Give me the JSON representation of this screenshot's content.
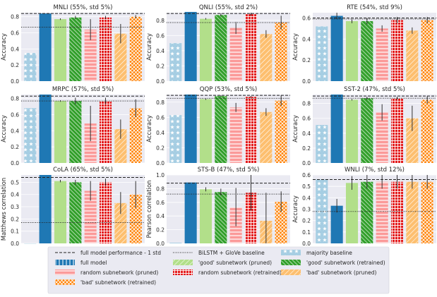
{
  "colors": {
    "axes_bg": "#eaeaf2",
    "grid": "#ffffff",
    "majority": "#a6cee3",
    "full": "#1f78b4",
    "good": "#b2df8a",
    "good_re": "#33a02c",
    "random": "#fb9a99",
    "random_re": "#e31a1c",
    "bad": "#fdbf6f",
    "bad_re": "#ff7f00"
  },
  "legend": {
    "entries": [
      {
        "key": "full_line",
        "label": "full model performance - 1 std"
      },
      {
        "key": "bilstm_line",
        "label": "BiLSTM + GloVe baseline"
      },
      {
        "key": "majority",
        "label": "majority baseline"
      },
      {
        "key": "full",
        "label": "full model"
      },
      {
        "key": "good",
        "label": "'good' subnetwork (pruned)"
      },
      {
        "key": "good_re",
        "label": "'good' subnetwork (retrained)"
      },
      {
        "key": "random",
        "label": "random subnetwork (pruned)"
      },
      {
        "key": "random_re",
        "label": "random subnetwork (retrained)"
      },
      {
        "key": "bad",
        "label": "'bad' subnetwork (pruned)"
      },
      {
        "key": "bad_re",
        "label": "'bad' subnetwork (retrained)"
      }
    ]
  },
  "chart_data": [
    {
      "type": "bar",
      "title": "MNLI (55%, std 5%)",
      "ylabel": "Accuracy",
      "ylim": [
        0,
        0.85
      ],
      "yticks": [
        0.0,
        0.2,
        0.4,
        0.6,
        0.8
      ],
      "values": [
        0.35,
        0.84,
        0.77,
        0.79,
        0.64,
        0.79,
        0.59,
        0.8
      ],
      "errors": [
        0,
        0,
        0.01,
        0.02,
        0.13,
        0.02,
        0.12,
        0.02
      ],
      "full_minus_std": 0.84,
      "bilstm": 0.67
    },
    {
      "type": "bar",
      "title": "QNLI (55%, std 2%)",
      "ylabel": "Accuracy",
      "ylim": [
        0,
        0.9
      ],
      "yticks": [
        0.0,
        0.2,
        0.4,
        0.6,
        0.8
      ],
      "values": [
        0.5,
        0.91,
        0.82,
        0.87,
        0.7,
        0.88,
        0.62,
        0.77
      ],
      "errors": [
        0,
        0,
        0.01,
        0.02,
        0.08,
        0.02,
        0.05,
        0.09
      ],
      "full_minus_std": 0.89,
      "bilstm": 0.77
    },
    {
      "type": "bar",
      "title": "RTE (54%, std 9%)",
      "ylabel": "Accuracy",
      "ylim": [
        0,
        0.65
      ],
      "yticks": [
        0.0,
        0.2,
        0.4,
        0.6
      ],
      "values": [
        0.52,
        0.62,
        0.57,
        0.57,
        0.5,
        0.58,
        0.48,
        0.58
      ],
      "errors": [
        0,
        0.03,
        0.02,
        0.03,
        0.03,
        0.03,
        0.03,
        0.03
      ],
      "full_minus_std": 0.6,
      "bilstm": 0.59
    },
    {
      "type": "bar",
      "title": "MRPC (57%, std 5%)",
      "ylabel": "Accuracy",
      "ylim": [
        0,
        0.85
      ],
      "yticks": [
        0.0,
        0.2,
        0.4,
        0.6,
        0.8
      ],
      "values": [
        0.68,
        0.85,
        0.77,
        0.77,
        0.49,
        0.77,
        0.42,
        0.68
      ],
      "errors": [
        0,
        0,
        0.01,
        0.04,
        0.22,
        0.04,
        0.12,
        0.11
      ],
      "full_minus_std": 0.83,
      "bilstm": 0.77
    },
    {
      "type": "bar",
      "title": "QQP (53%, std 5%)",
      "ylabel": "Accuracy",
      "ylim": [
        0,
        0.9
      ],
      "yticks": [
        0.0,
        0.2,
        0.4,
        0.6,
        0.8
      ],
      "values": [
        0.63,
        0.9,
        0.84,
        0.88,
        0.73,
        0.87,
        0.67,
        0.82
      ],
      "errors": [
        0,
        0,
        0.01,
        0.01,
        0.06,
        0.01,
        0.05,
        0.07
      ],
      "full_minus_std": 0.89,
      "bilstm": 0.85
    },
    {
      "type": "bar",
      "title": "SST-2 (47%, std 5%)",
      "ylabel": "Accuracy",
      "ylim": [
        0,
        0.92
      ],
      "yticks": [
        0.0,
        0.2,
        0.4,
        0.6,
        0.8
      ],
      "values": [
        0.51,
        0.92,
        0.85,
        0.87,
        0.68,
        0.87,
        0.6,
        0.85
      ],
      "errors": [
        0,
        0,
        0.01,
        0.02,
        0.11,
        0.02,
        0.17,
        0.05
      ],
      "full_minus_std": 0.9,
      "bilstm": 0.87
    },
    {
      "type": "bar",
      "title": "CoLA (65%, std 5%)",
      "ylabel": "Matthews correlation",
      "ylim": [
        0,
        0.56
      ],
      "yticks": [
        0.0,
        0.1,
        0.2,
        0.3,
        0.4,
        0.5
      ],
      "values": [
        0.0,
        0.56,
        0.51,
        0.5,
        0.43,
        0.5,
        0.33,
        0.4
      ],
      "errors": [
        0,
        0,
        0.01,
        0.02,
        0.08,
        0.03,
        0.09,
        0.11
      ],
      "full_minus_std": 0.54,
      "bilstm": 0.17
    },
    {
      "type": "bar",
      "title": "STS-B (47%, std 5%)",
      "ylabel": "Pearson correlation",
      "ylim": [
        0,
        1.0
      ],
      "yticks": [
        0.0,
        0.2,
        0.4,
        0.6,
        0.8,
        1.0
      ],
      "values": [
        0.01,
        0.89,
        0.79,
        0.75,
        0.53,
        0.74,
        0.33,
        0.61
      ],
      "errors": [
        0,
        0,
        0.03,
        0.05,
        0.28,
        0.26,
        0.41,
        0.15
      ],
      "full_minus_std": 0.88,
      "bilstm": 0.72
    },
    {
      "type": "bar",
      "title": "WNLI (7%, std 12%)",
      "ylabel": "Accuracy",
      "ylim": [
        0,
        0.6
      ],
      "yticks": [
        0.0,
        0.1,
        0.2,
        0.3,
        0.4,
        0.5,
        0.6
      ],
      "values": [
        0.56,
        0.33,
        0.53,
        0.54,
        0.54,
        0.54,
        0.54,
        0.54
      ],
      "errors": [
        0,
        0.06,
        0.06,
        0.06,
        0.06,
        0.06,
        0.06,
        0.06
      ],
      "full_minus_std": 0.56,
      "bilstm": 0.28
    }
  ]
}
